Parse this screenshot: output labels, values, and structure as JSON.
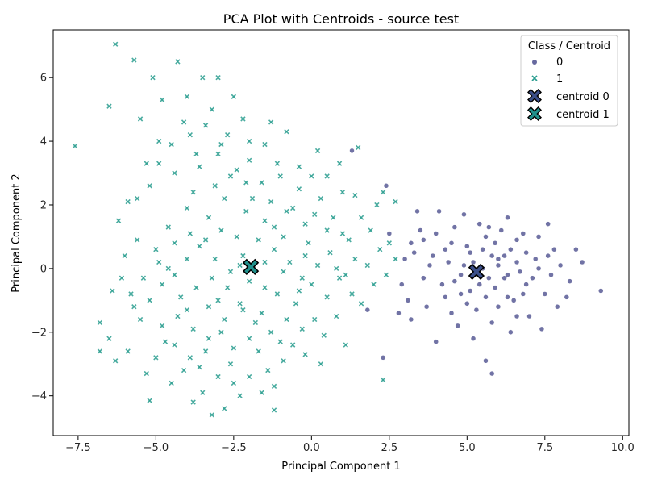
{
  "chart_data": {
    "type": "scatter",
    "title": "PCA Plot with Centroids - source test",
    "xlabel": "Principal Component 1",
    "ylabel": "Principal Component 2",
    "xlim": [
      -8.3,
      10.2
    ],
    "ylim": [
      -5.25,
      7.5
    ],
    "xticks": [
      -7.5,
      -5.0,
      -2.5,
      0.0,
      2.5,
      5.0,
      7.5,
      10.0
    ],
    "xtick_labels": [
      "−7.5",
      "−5.0",
      "−2.5",
      "0.0",
      "2.5",
      "5.0",
      "7.5",
      "10.0"
    ],
    "yticks": [
      -4,
      -2,
      0,
      2,
      4,
      6
    ],
    "ytick_labels": [
      "−4",
      "−2",
      "0",
      "2",
      "4",
      "6"
    ],
    "grid": false,
    "legend": {
      "title": "Class / Centroid",
      "position": "top-right",
      "entries": [
        "0",
        "1",
        "centroid 0",
        "centroid 1"
      ]
    },
    "colors": {
      "class_0": "#414487",
      "class_1": "#2a9d8f",
      "centroid_0": "#3b4f8a",
      "centroid_1": "#21918c"
    },
    "series": [
      {
        "name": "0",
        "marker": "circle",
        "points": [
          [
            5.3,
            -0.1
          ],
          [
            5.8,
            0.4
          ],
          [
            6.2,
            -0.3
          ],
          [
            6.6,
            0.2
          ],
          [
            5.9,
            -0.6
          ],
          [
            5.1,
            0.5
          ],
          [
            4.8,
            -0.2
          ],
          [
            6.9,
            -0.5
          ],
          [
            7.2,
            0.3
          ],
          [
            7.5,
            -0.8
          ],
          [
            4.5,
            0.8
          ],
          [
            4.2,
            -0.5
          ],
          [
            5.6,
            1.0
          ],
          [
            6.1,
            1.2
          ],
          [
            6.5,
            -1.0
          ],
          [
            5.0,
            -1.1
          ],
          [
            4.6,
            1.3
          ],
          [
            3.9,
            0.4
          ],
          [
            3.6,
            -0.3
          ],
          [
            7.8,
            0.6
          ],
          [
            8.3,
            -0.4
          ],
          [
            8.7,
            0.2
          ],
          [
            9.3,
            -0.7
          ],
          [
            8.5,
            0.6
          ],
          [
            6.3,
            1.6
          ],
          [
            5.4,
            1.4
          ],
          [
            4.9,
            1.7
          ],
          [
            4.1,
            1.8
          ],
          [
            3.4,
            1.8
          ],
          [
            3.5,
            1.2
          ],
          [
            3.2,
            0.8
          ],
          [
            3.0,
            0.3
          ],
          [
            2.9,
            -0.5
          ],
          [
            3.1,
            -1.0
          ],
          [
            3.7,
            -1.2
          ],
          [
            4.0,
            -2.3
          ],
          [
            4.7,
            -1.8
          ],
          [
            5.2,
            -2.2
          ],
          [
            5.6,
            -2.9
          ],
          [
            5.8,
            -3.3
          ],
          [
            6.4,
            -2.0
          ],
          [
            7.0,
            -1.5
          ],
          [
            7.4,
            -1.9
          ],
          [
            7.9,
            -1.2
          ],
          [
            8.2,
            -0.9
          ],
          [
            6.8,
            1.1
          ],
          [
            7.3,
            1.0
          ],
          [
            7.6,
            1.4
          ],
          [
            5.5,
            0.0
          ],
          [
            5.7,
            -0.3
          ],
          [
            6.0,
            0.1
          ],
          [
            6.3,
            -0.2
          ],
          [
            5.2,
            0.2
          ],
          [
            4.9,
            0.1
          ],
          [
            5.4,
            -0.5
          ],
          [
            6.7,
            -0.1
          ],
          [
            7.1,
            -0.3
          ],
          [
            6.4,
            0.6
          ],
          [
            5.9,
            0.8
          ],
          [
            5.0,
            0.7
          ],
          [
            4.4,
            0.2
          ],
          [
            4.3,
            -0.9
          ],
          [
            4.8,
            -0.8
          ],
          [
            5.3,
            -1.3
          ],
          [
            6.0,
            -1.2
          ],
          [
            6.6,
            -1.5
          ],
          [
            7.7,
            -0.2
          ],
          [
            8.0,
            0.1
          ],
          [
            2.4,
            2.6
          ],
          [
            1.3,
            3.7
          ],
          [
            2.5,
            1.1
          ],
          [
            2.3,
            -2.8
          ],
          [
            1.8,
            -1.3
          ],
          [
            4.3,
            0.6
          ],
          [
            3.8,
            0.1
          ],
          [
            4.6,
            -0.4
          ],
          [
            5.5,
            0.6
          ],
          [
            6.2,
            0.4
          ],
          [
            6.9,
            0.5
          ],
          [
            7.3,
            0.0
          ],
          [
            5.7,
            1.3
          ],
          [
            6.6,
            0.9
          ],
          [
            5.1,
            -0.7
          ],
          [
            4.5,
            -1.4
          ],
          [
            5.8,
            -1.7
          ],
          [
            6.3,
            -0.9
          ],
          [
            4.0,
            1.1
          ],
          [
            3.3,
            0.5
          ],
          [
            3.6,
            0.9
          ],
          [
            6.0,
            0.3
          ],
          [
            5.6,
            -0.9
          ],
          [
            6.8,
            -0.8
          ],
          [
            7.6,
            0.4
          ],
          [
            2.8,
            -1.4
          ],
          [
            3.2,
            -1.6
          ]
        ]
      },
      {
        "name": "1",
        "marker": "x",
        "points": [
          [
            -7.6,
            3.85
          ],
          [
            -6.3,
            7.05
          ],
          [
            -5.7,
            6.55
          ],
          [
            -5.1,
            6.0
          ],
          [
            -4.3,
            6.5
          ],
          [
            -3.5,
            6.0
          ],
          [
            -3.0,
            6.0
          ],
          [
            -4.8,
            5.3
          ],
          [
            -6.5,
            5.1
          ],
          [
            -5.5,
            4.7
          ],
          [
            -4.0,
            5.4
          ],
          [
            -3.2,
            5.0
          ],
          [
            -2.5,
            5.4
          ],
          [
            -2.2,
            4.7
          ],
          [
            -1.3,
            4.6
          ],
          [
            -0.8,
            4.3
          ],
          [
            0.2,
            3.7
          ],
          [
            0.9,
            3.3
          ],
          [
            1.5,
            3.8
          ],
          [
            1.4,
            2.3
          ],
          [
            2.3,
            2.4
          ],
          [
            2.7,
            2.1
          ],
          [
            2.1,
            2.0
          ],
          [
            1.6,
            1.6
          ],
          [
            2.5,
            0.8
          ],
          [
            2.7,
            0.3
          ],
          [
            -6.2,
            1.5
          ],
          [
            -5.9,
            2.1
          ],
          [
            -5.2,
            2.6
          ],
          [
            -4.9,
            3.3
          ],
          [
            -4.5,
            3.9
          ],
          [
            -3.9,
            4.2
          ],
          [
            -3.6,
            3.2
          ],
          [
            -3.0,
            3.6
          ],
          [
            -2.6,
            2.9
          ],
          [
            -2.0,
            3.4
          ],
          [
            -1.6,
            2.7
          ],
          [
            -1.0,
            2.9
          ],
          [
            -0.4,
            2.5
          ],
          [
            0.3,
            2.2
          ],
          [
            0.7,
            1.6
          ],
          [
            1.0,
            1.1
          ],
          [
            -0.2,
            1.4
          ],
          [
            -0.8,
            1.8
          ],
          [
            -1.5,
            1.5
          ],
          [
            -2.1,
            1.8
          ],
          [
            -2.8,
            2.2
          ],
          [
            -3.3,
            1.6
          ],
          [
            -4.0,
            1.9
          ],
          [
            -4.6,
            1.3
          ],
          [
            -5.0,
            0.6
          ],
          [
            -5.6,
            0.9
          ],
          [
            -6.0,
            0.4
          ],
          [
            -6.4,
            -0.7
          ],
          [
            -6.8,
            -1.7
          ],
          [
            -6.5,
            -2.2
          ],
          [
            -6.8,
            -2.6
          ],
          [
            -6.3,
            -2.9
          ],
          [
            -5.9,
            -2.6
          ],
          [
            -5.5,
            -1.6
          ],
          [
            -5.2,
            -1.0
          ],
          [
            -4.8,
            -0.5
          ],
          [
            -4.4,
            -0.2
          ],
          [
            -4.0,
            0.3
          ],
          [
            -3.6,
            0.7
          ],
          [
            -3.1,
            0.3
          ],
          [
            -2.6,
            -0.1
          ],
          [
            -2.2,
            0.4
          ],
          [
            -1.7,
            0.9
          ],
          [
            -1.2,
            0.6
          ],
          [
            -0.7,
            0.2
          ],
          [
            -0.3,
            -0.3
          ],
          [
            0.2,
            0.1
          ],
          [
            0.6,
            0.5
          ],
          [
            1.1,
            -0.2
          ],
          [
            1.4,
            0.3
          ],
          [
            2.0,
            -0.5
          ],
          [
            2.2,
            0.6
          ],
          [
            -0.5,
            -1.1
          ],
          [
            -1.1,
            -0.8
          ],
          [
            -1.6,
            -1.4
          ],
          [
            -2.3,
            -1.1
          ],
          [
            -2.8,
            -1.6
          ],
          [
            -3.3,
            -1.2
          ],
          [
            -3.8,
            -1.9
          ],
          [
            -4.3,
            -1.5
          ],
          [
            -4.7,
            -2.3
          ],
          [
            -5.0,
            -2.8
          ],
          [
            -5.3,
            -3.3
          ],
          [
            -5.2,
            -4.15
          ],
          [
            -4.5,
            -3.6
          ],
          [
            -4.1,
            -3.2
          ],
          [
            -3.8,
            -4.2
          ],
          [
            -3.5,
            -3.9
          ],
          [
            -3.2,
            -4.6
          ],
          [
            -3.0,
            -3.4
          ],
          [
            -2.6,
            -3.0
          ],
          [
            -2.3,
            -4.0
          ],
          [
            -2.0,
            -3.4
          ],
          [
            -1.7,
            -2.6
          ],
          [
            -1.4,
            -3.2
          ],
          [
            -1.2,
            -3.7
          ],
          [
            -1.2,
            -4.45
          ],
          [
            -0.9,
            -2.9
          ],
          [
            -0.6,
            -2.4
          ],
          [
            -0.3,
            -1.9
          ],
          [
            0.1,
            -1.6
          ],
          [
            0.4,
            -2.1
          ],
          [
            0.8,
            -1.5
          ],
          [
            1.1,
            -2.4
          ],
          [
            1.6,
            -1.1
          ],
          [
            2.3,
            -3.5
          ],
          [
            -2.0,
            -2.2
          ],
          [
            -2.5,
            -2.5
          ],
          [
            -2.9,
            -2.0
          ],
          [
            -3.4,
            -2.6
          ],
          [
            -3.9,
            -2.8
          ],
          [
            -4.4,
            -2.4
          ],
          [
            -1.8,
            -1.7
          ],
          [
            -1.3,
            -2.0
          ],
          [
            -0.8,
            -1.6
          ],
          [
            -0.4,
            -0.7
          ],
          [
            0.0,
            -0.5
          ],
          [
            0.5,
            -0.9
          ],
          [
            0.9,
            -0.3
          ],
          [
            1.3,
            -0.8
          ],
          [
            1.8,
            0.1
          ],
          [
            2.4,
            -0.2
          ],
          [
            -2.4,
            1.0
          ],
          [
            -2.9,
            1.2
          ],
          [
            -3.4,
            0.9
          ],
          [
            -3.9,
            1.1
          ],
          [
            -4.4,
            0.8
          ],
          [
            -4.9,
            0.2
          ],
          [
            -5.4,
            -0.3
          ],
          [
            -5.8,
            -0.8
          ],
          [
            -1.9,
            2.2
          ],
          [
            -1.3,
            2.1
          ],
          [
            -0.6,
            1.9
          ],
          [
            0.1,
            1.7
          ],
          [
            0.5,
            1.2
          ],
          [
            -0.1,
            0.8
          ],
          [
            -0.9,
            1.0
          ],
          [
            -1.5,
            0.2
          ],
          [
            -2.0,
            -0.4
          ],
          [
            -2.7,
            -0.6
          ],
          [
            -3.2,
            -0.3
          ],
          [
            -3.7,
            -0.6
          ],
          [
            -4.2,
            -0.9
          ],
          [
            -4.6,
            0.0
          ],
          [
            -3.1,
            2.6
          ],
          [
            -2.4,
            3.1
          ],
          [
            -1.1,
            3.3
          ],
          [
            -0.4,
            3.2
          ],
          [
            0.5,
            2.9
          ],
          [
            1.0,
            2.4
          ],
          [
            -2.7,
            4.2
          ],
          [
            -3.4,
            4.5
          ],
          [
            -4.1,
            4.6
          ],
          [
            -4.9,
            4.0
          ],
          [
            -5.3,
            3.3
          ],
          [
            -5.6,
            2.2
          ],
          [
            -1.5,
            3.9
          ],
          [
            -2.0,
            4.0
          ],
          [
            -2.9,
            3.9
          ],
          [
            -3.7,
            3.6
          ],
          [
            -4.4,
            3.0
          ],
          [
            -3.0,
            -1.0
          ],
          [
            -2.2,
            -1.3
          ],
          [
            -1.5,
            -0.6
          ],
          [
            -0.9,
            -0.1
          ],
          [
            -0.2,
            0.4
          ],
          [
            0.8,
            0.0
          ],
          [
            1.2,
            0.9
          ],
          [
            1.9,
            1.2
          ],
          [
            -2.5,
            -3.6
          ],
          [
            -3.6,
            -3.1
          ],
          [
            -4.8,
            -1.8
          ],
          [
            -5.7,
            -1.2
          ],
          [
            -6.1,
            -0.3
          ],
          [
            -1.0,
            -2.3
          ],
          [
            -0.2,
            -2.7
          ],
          [
            0.3,
            -3.0
          ],
          [
            -1.6,
            -3.9
          ],
          [
            -2.8,
            -4.4
          ],
          [
            -3.3,
            -2.2
          ],
          [
            -4.0,
            -1.3
          ],
          [
            -2.1,
            2.7
          ],
          [
            -1.2,
            1.3
          ],
          [
            0.0,
            2.9
          ],
          [
            -3.8,
            2.4
          ],
          [
            -2.3,
            0.1
          ]
        ]
      }
    ],
    "centroids": [
      {
        "name": "centroid 0",
        "x": 5.3,
        "y": -0.1
      },
      {
        "name": "centroid 1",
        "x": -1.95,
        "y": 0.05
      }
    ]
  }
}
